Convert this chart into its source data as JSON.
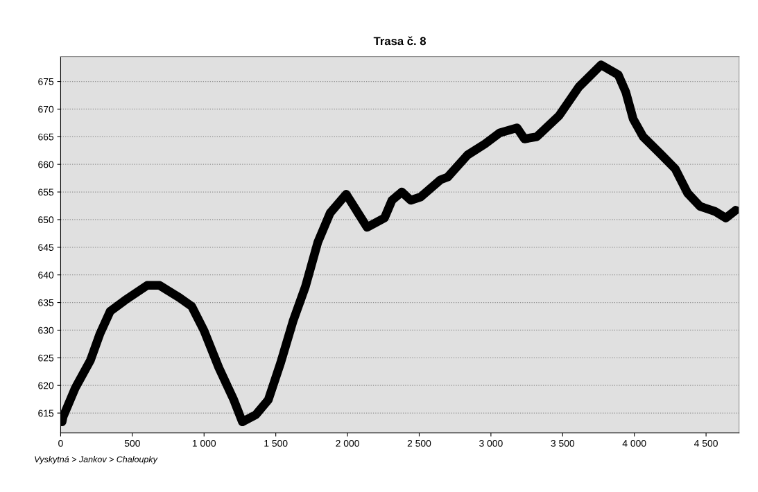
{
  "chart_data": {
    "type": "line",
    "title": "Trasa č. 8",
    "annotations": [
      "Vyskytná > Jankov > Chaloupky"
    ],
    "x": [
      10,
      17,
      103,
      207,
      275,
      345,
      448,
      603,
      690,
      827,
      914,
      1000,
      1103,
      1207,
      1267,
      1361,
      1448,
      1534,
      1620,
      1707,
      1793,
      1879,
      1991,
      2137,
      2258,
      2310,
      2379,
      2441,
      2510,
      2648,
      2699,
      2837,
      2958,
      3061,
      3182,
      3234,
      3320,
      3475,
      3613,
      3768,
      3888,
      3940,
      3992,
      4061,
      4182,
      4285,
      4371,
      4458,
      4561,
      4638,
      4707
    ],
    "series": [
      {
        "color": "#000000",
        "values": [
          613.4,
          614.3,
          619.6,
          624.5,
          629.4,
          633.4,
          635.4,
          638.1,
          638.1,
          635.9,
          634.3,
          629.9,
          623.2,
          617.4,
          613.4,
          614.7,
          617.4,
          624.1,
          631.6,
          637.9,
          645.9,
          651.2,
          654.6,
          648.6,
          650.3,
          653.5,
          655.0,
          653.5,
          654.1,
          657.2,
          657.7,
          661.7,
          663.7,
          665.7,
          666.6,
          664.6,
          665.0,
          668.8,
          674.0,
          678.0,
          676.2,
          673.1,
          668.2,
          665.0,
          661.9,
          659.2,
          654.8,
          652.4,
          651.5,
          650.3,
          651.7
        ]
      }
    ],
    "xlim": [
      0,
      4730
    ],
    "ylim": [
      611.4,
      679.5
    ],
    "xticks": [
      0,
      500,
      {
        "value": 1000,
        "label": "1 000"
      },
      {
        "value": 1500,
        "label": "1 500"
      },
      {
        "value": 2000,
        "label": "2 000"
      },
      {
        "value": 2500,
        "label": "2 500"
      },
      {
        "value": 3000,
        "label": "3 000"
      },
      {
        "value": 3500,
        "label": "3 500"
      },
      {
        "value": 4000,
        "label": "4 000"
      },
      {
        "value": 4500,
        "label": "4 500"
      }
    ],
    "yticks": [
      615,
      620,
      625,
      630,
      635,
      640,
      645,
      650,
      655,
      660,
      665,
      670,
      675
    ],
    "grid": "y",
    "legend": false,
    "line_style": "solid"
  }
}
